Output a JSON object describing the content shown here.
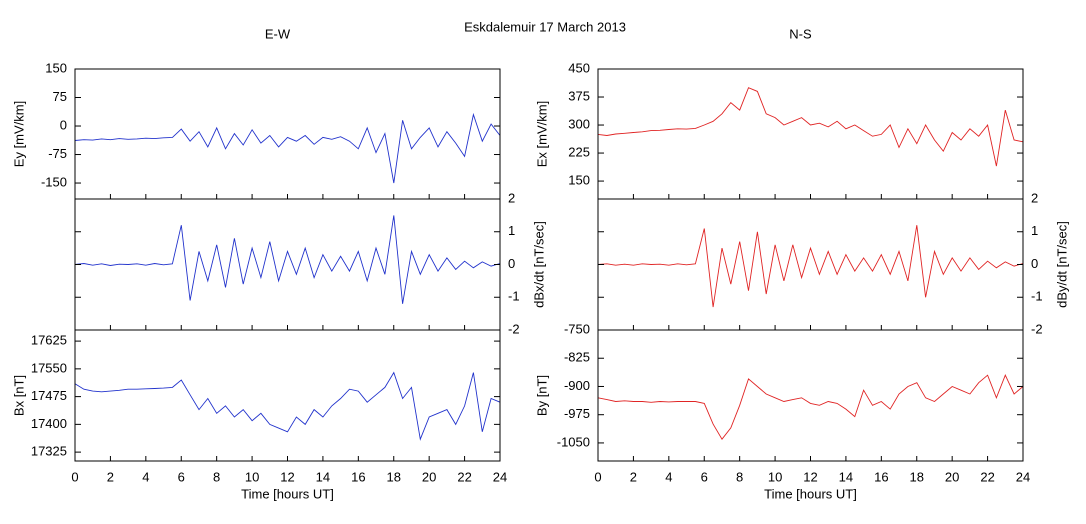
{
  "title": "Eskdalemuir 17 March 2013",
  "chart_data": [
    {
      "type": "line",
      "title": "E-W",
      "xlabel": "Time [hours UT]",
      "xlim": [
        0,
        24
      ],
      "xticks": [
        0,
        2,
        4,
        6,
        8,
        10,
        12,
        14,
        16,
        18,
        20,
        22,
        24
      ],
      "x": [
        0,
        0.5,
        1,
        1.5,
        2,
        2.5,
        3,
        3.5,
        4,
        4.5,
        5,
        5.5,
        6,
        6.5,
        7,
        7.5,
        8,
        8.5,
        9,
        9.5,
        10,
        10.5,
        11,
        11.5,
        12,
        12.5,
        13,
        13.5,
        14,
        14.5,
        15,
        15.5,
        16,
        16.5,
        17,
        17.5,
        18,
        18.5,
        19,
        19.5,
        20,
        20.5,
        21,
        21.5,
        22,
        22.5,
        23,
        23.5,
        24
      ],
      "panels": [
        {
          "ylabel": "Ey [mV/km]",
          "axis_side": "left",
          "ylim": [
            -192,
            150
          ],
          "yticks": [
            150,
            75,
            0,
            -75,
            -150
          ],
          "color": "#2233cc",
          "values": [
            -38,
            -36,
            -37,
            -34,
            -36,
            -33,
            -35,
            -34,
            -32,
            -33,
            -31,
            -30,
            -8,
            -40,
            -15,
            -55,
            -5,
            -60,
            -20,
            -50,
            -10,
            -45,
            -25,
            -55,
            -30,
            -40,
            -25,
            -48,
            -30,
            -35,
            -28,
            -40,
            -60,
            -5,
            -70,
            -20,
            -150,
            15,
            -60,
            -30,
            -5,
            -55,
            -15,
            -45,
            -80,
            30,
            -40,
            5,
            -25
          ]
        },
        {
          "ylabel": "dBx/dt [nT/sec]",
          "axis_side": "right",
          "ylim": [
            -2,
            2
          ],
          "yticks": [
            2,
            1,
            0,
            -1,
            -2
          ],
          "color": "#2233cc",
          "values": [
            0,
            0.03,
            -0.02,
            0.02,
            -0.03,
            0.01,
            0,
            0.02,
            -0.02,
            0.03,
            -0.01,
            0.02,
            1.2,
            -1.1,
            0.4,
            -0.5,
            0.6,
            -0.7,
            0.8,
            -0.6,
            0.5,
            -0.4,
            0.7,
            -0.5,
            0.4,
            -0.3,
            0.5,
            -0.4,
            0.3,
            -0.2,
            0.25,
            -0.2,
            0.4,
            -0.5,
            0.5,
            -0.3,
            1.5,
            -1.2,
            0.4,
            -0.3,
            0.3,
            -0.2,
            0.2,
            -0.15,
            0.1,
            -0.1,
            0.08,
            -0.05,
            0.03
          ]
        },
        {
          "ylabel": "Bx [nT]",
          "axis_side": "left",
          "ylim": [
            17301,
            17655
          ],
          "yticks": [
            17625,
            17550,
            17475,
            17400,
            17325
          ],
          "color": "#2233cc",
          "values": [
            17510,
            17495,
            17490,
            17488,
            17490,
            17492,
            17495,
            17495,
            17496,
            17497,
            17498,
            17500,
            17520,
            17480,
            17440,
            17470,
            17430,
            17450,
            17420,
            17440,
            17410,
            17430,
            17400,
            17390,
            17380,
            17420,
            17400,
            17440,
            17420,
            17450,
            17470,
            17495,
            17490,
            17460,
            17480,
            17500,
            17540,
            17470,
            17500,
            17360,
            17420,
            17430,
            17440,
            17400,
            17450,
            17540,
            17380,
            17470,
            17460
          ]
        }
      ]
    },
    {
      "type": "line",
      "title": "N-S",
      "xlabel": "Time [hours UT]",
      "xlim": [
        0,
        24
      ],
      "xticks": [
        0,
        2,
        4,
        6,
        8,
        10,
        12,
        14,
        16,
        18,
        20,
        22,
        24
      ],
      "x": [
        0,
        0.5,
        1,
        1.5,
        2,
        2.5,
        3,
        3.5,
        4,
        4.5,
        5,
        5.5,
        6,
        6.5,
        7,
        7.5,
        8,
        8.5,
        9,
        9.5,
        10,
        10.5,
        11,
        11.5,
        12,
        12.5,
        13,
        13.5,
        14,
        14.5,
        15,
        15.5,
        16,
        16.5,
        17,
        17.5,
        18,
        18.5,
        19,
        19.5,
        20,
        20.5,
        21,
        21.5,
        22,
        22.5,
        23,
        23.5,
        24
      ],
      "panels": [
        {
          "ylabel": "Ex [mV/km]",
          "axis_side": "left",
          "ylim": [
            102,
            450
          ],
          "yticks": [
            450,
            375,
            300,
            225,
            150
          ],
          "color": "#e02424",
          "values": [
            275,
            272,
            276,
            278,
            280,
            282,
            285,
            286,
            288,
            290,
            289,
            291,
            300,
            310,
            330,
            360,
            340,
            400,
            390,
            330,
            320,
            300,
            310,
            320,
            300,
            305,
            295,
            310,
            290,
            300,
            285,
            270,
            275,
            300,
            240,
            290,
            250,
            300,
            260,
            230,
            280,
            260,
            290,
            270,
            300,
            190,
            340,
            260,
            255
          ]
        },
        {
          "ylabel": "dBy/dt [nT/sec]",
          "axis_side": "right",
          "ylim": [
            -2,
            2
          ],
          "yticks": [
            2,
            1,
            0,
            -1,
            -2
          ],
          "color": "#e02424",
          "values": [
            0,
            0.02,
            -0.02,
            0.01,
            -0.02,
            0.02,
            0,
            0.01,
            -0.02,
            0.02,
            -0.01,
            0.02,
            1.1,
            -1.3,
            0.5,
            -0.6,
            0.7,
            -0.8,
            1.0,
            -0.9,
            0.6,
            -0.5,
            0.6,
            -0.4,
            0.5,
            -0.3,
            0.4,
            -0.3,
            0.3,
            -0.2,
            0.2,
            -0.2,
            0.3,
            -0.3,
            0.4,
            -0.5,
            1.2,
            -1.0,
            0.4,
            -0.3,
            0.2,
            -0.2,
            0.2,
            -0.15,
            0.1,
            -0.1,
            0.08,
            -0.05,
            0.03
          ]
        },
        {
          "ylabel": "By [nT]",
          "axis_side": "left",
          "ylim": [
            -1098,
            -750
          ],
          "yticks": [
            -750,
            -825,
            -900,
            -975,
            -1050
          ],
          "color": "#e02424",
          "values": [
            -930,
            -935,
            -940,
            -938,
            -940,
            -940,
            -942,
            -940,
            -941,
            -940,
            -940,
            -940,
            -945,
            -1000,
            -1040,
            -1010,
            -950,
            -880,
            -900,
            -920,
            -930,
            -940,
            -935,
            -930,
            -945,
            -950,
            -940,
            -945,
            -960,
            -980,
            -910,
            -950,
            -940,
            -960,
            -920,
            -900,
            -890,
            -930,
            -940,
            -920,
            -900,
            -910,
            -920,
            -890,
            -870,
            -930,
            -870,
            -920,
            -900
          ]
        }
      ]
    }
  ]
}
